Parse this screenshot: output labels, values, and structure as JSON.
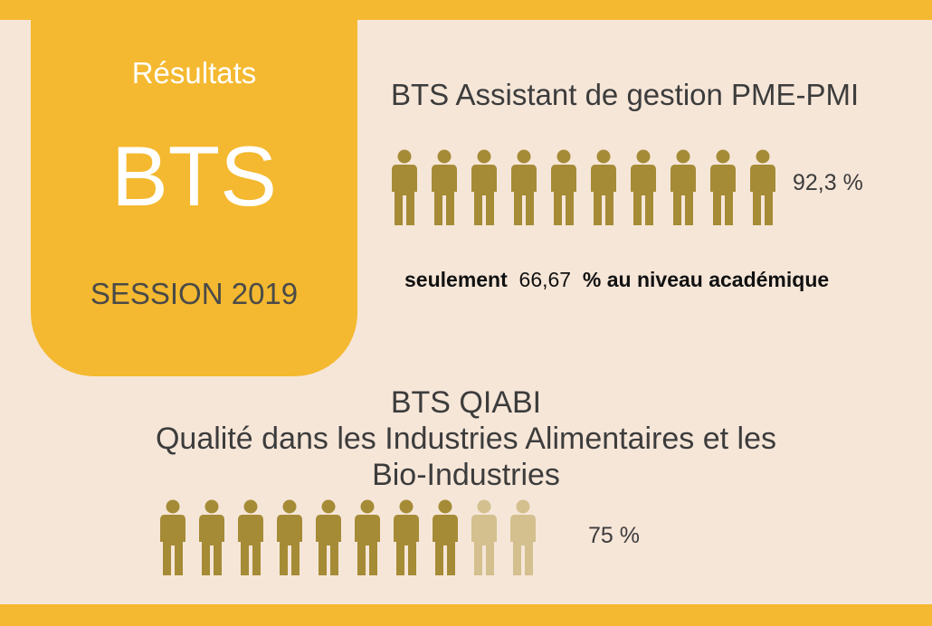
{
  "colors": {
    "background": "#f6e6d8",
    "accent": "#f4b930",
    "person_dark": "#a58b36",
    "person_light": "#d3c08e",
    "text": "#3c3c3c"
  },
  "card": {
    "results_label": "Résultats",
    "exam": "BTS",
    "session": "SESSION 2019"
  },
  "program1": {
    "title": "BTS Assistant de gestion PME-PMI",
    "rate": "92,3  %",
    "rate_value": 92.3,
    "icons_dark": 10,
    "icons_light": 0,
    "note_prefix": "seulement",
    "note_value": "66,67",
    "note_suffix": "% au niveau académique"
  },
  "program2": {
    "title_line1": "BTS QIABI",
    "title_line2": "Qualité dans les Industries Alimentaires et les",
    "title_line3": "Bio-Industries",
    "rate": "75 %",
    "rate_value": 75,
    "icons_dark": 8,
    "icons_light": 2
  }
}
